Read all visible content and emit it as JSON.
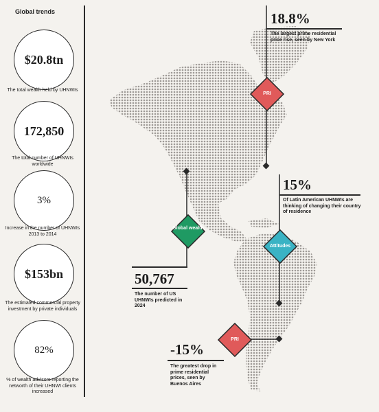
{
  "sidebar": {
    "title": "Global trends",
    "stats": [
      {
        "value": "$20.8tn",
        "caption": "The total wealth held by UHNWIs"
      },
      {
        "value": "172,850",
        "caption": "The total number of UHNWIs worldwide"
      },
      {
        "value": "3%",
        "caption": "Increase in the number of UHNWIs 2013 to 2014"
      },
      {
        "value": "$153bn",
        "caption": "The estimated commercial property investment by private individuals"
      },
      {
        "value": "82%",
        "caption": "% of wealth advisors reporting the networth of their UHNWI clients increased"
      }
    ]
  },
  "callouts": {
    "new_york": {
      "value": "18.8%",
      "text": "The largest prime residential price rise, seen by New York"
    },
    "latam": {
      "value": "15%",
      "text": "Of Latin American UHNWIs are thinking of changing their country of residence"
    },
    "us": {
      "value": "50,767",
      "text": "The number of US UHNWIs predicted in 2024"
    },
    "buenos_aires": {
      "value": "-15%",
      "text": "The greatest drop in prime residential prices, seen by Buenos Aires"
    }
  },
  "diamonds": {
    "pri_north": {
      "label": "PRI",
      "color": "#e05a5a"
    },
    "global_wealth": {
      "label": "Global wealth",
      "color": "#1f9a63"
    },
    "attitudes": {
      "label": "Attitudes",
      "color": "#3ab3c4"
    },
    "pri_south": {
      "label": "PRI",
      "color": "#e05a5a"
    }
  },
  "colors": {
    "map_dots": "#9e9a96",
    "line": "#2a2a2a",
    "background": "#f4f2ee"
  }
}
